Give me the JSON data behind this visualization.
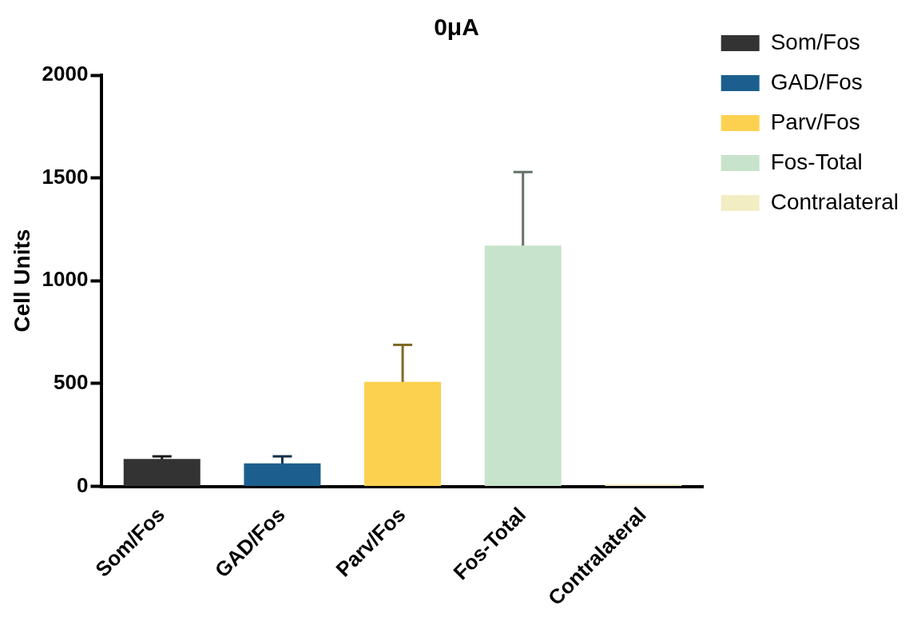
{
  "chart_data": {
    "type": "bar",
    "title": "0μA",
    "ylabel": "Cell Units",
    "categories": [
      "Som/Fos",
      "GAD/Fos",
      "Parv/Fos",
      "Fos-Total",
      "Contralateral"
    ],
    "series": [
      {
        "name": "Som/Fos",
        "color": "#333333",
        "values": [
          133,
          null,
          null,
          null,
          null
        ],
        "errors": [
          13,
          null,
          null,
          null,
          null
        ]
      },
      {
        "name": "GAD/Fos",
        "color": "#1c5f8e",
        "values": [
          null,
          112,
          null,
          null,
          null
        ],
        "errors": [
          null,
          34,
          null,
          null,
          null
        ]
      },
      {
        "name": "Parv/Fos",
        "color": "#fdd150",
        "values": [
          null,
          null,
          508,
          null,
          null
        ],
        "errors": [
          null,
          null,
          180,
          null,
          null
        ]
      },
      {
        "name": "Fos-Total",
        "color": "#c8e3cb",
        "values": [
          null,
          null,
          null,
          1171,
          null
        ],
        "errors": [
          null,
          null,
          null,
          358,
          null
        ]
      },
      {
        "name": "Contralateral",
        "color": "#f3edc4",
        "values": [
          null,
          null,
          null,
          null,
          10
        ]
      }
    ],
    "ylim": [
      0,
      2000
    ],
    "yticks": [
      0,
      500,
      1000,
      1500,
      2000
    ],
    "grid": false,
    "legend": "right"
  }
}
